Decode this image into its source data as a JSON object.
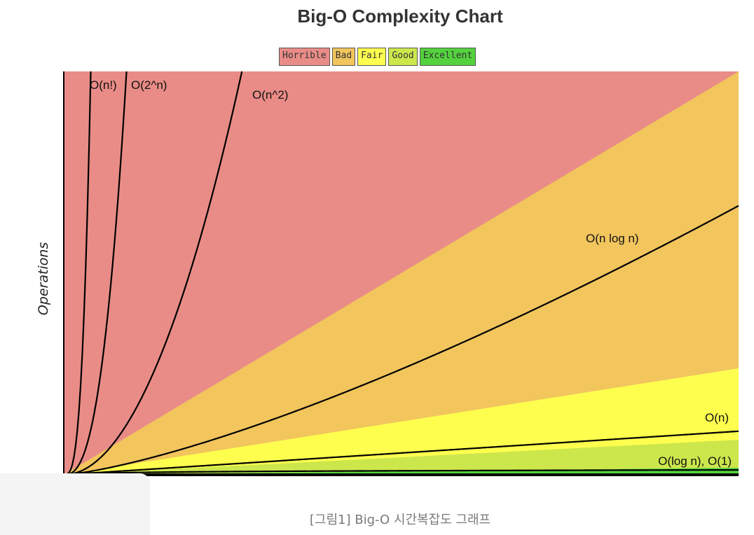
{
  "chart_data": {
    "type": "area",
    "title": "Big-O Complexity Chart",
    "ylabel": "Operations",
    "xlabel": "",
    "legend": {
      "placement": "top-center",
      "items": [
        {
          "label": "Horrible",
          "color": "#e98c87"
        },
        {
          "label": "Bad",
          "color": "#f2c55d"
        },
        {
          "label": "Fair",
          "color": "#fefe4f"
        },
        {
          "label": "Good",
          "color": "#cce74c"
        },
        {
          "label": "Excellent",
          "color": "#53d23d"
        }
      ]
    },
    "series": [
      {
        "name": "O(n!)",
        "label": "O(n!)",
        "func": "factorial"
      },
      {
        "name": "O(2^n)",
        "label": "O(2^n)",
        "func": "exp2"
      },
      {
        "name": "O(n^2)",
        "label": "O(n^2)",
        "func": "square"
      },
      {
        "name": "O(n log n)",
        "label": "O(n log n)",
        "func": "nlogn"
      },
      {
        "name": "O(n)",
        "label": "O(n)",
        "func": "linear"
      },
      {
        "name": "O(log n), O(1)",
        "label": "O(log n), O(1)",
        "func": "log"
      }
    ],
    "grid": false
  },
  "caption": "[그림1] Big-O 시간복잡도 그래프"
}
